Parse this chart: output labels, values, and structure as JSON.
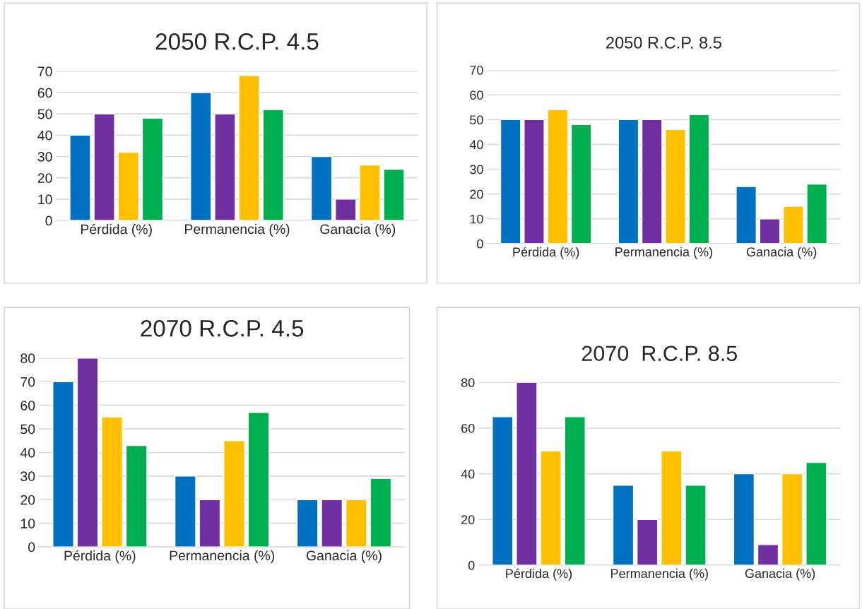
{
  "chart_data": [
    {
      "type": "bar",
      "title": "2050 R.C.P. 4.5",
      "categories": [
        "Pérdida (%)",
        "Permanencia (%)",
        "Ganacia (%)"
      ],
      "ylim": [
        0,
        70
      ],
      "yticks": [
        0,
        10,
        20,
        30,
        40,
        50,
        60,
        70
      ],
      "grid": "y",
      "series": [
        {
          "color": "#0070c0",
          "values": [
            40,
            60,
            30
          ]
        },
        {
          "color": "#7030a0",
          "values": [
            50,
            50,
            10
          ]
        },
        {
          "color": "#ffc000",
          "values": [
            32,
            68,
            26
          ]
        },
        {
          "color": "#00b050",
          "values": [
            48,
            52,
            24
          ]
        }
      ]
    },
    {
      "type": "bar",
      "title": "2050 R.C.P. 8.5",
      "categories": [
        "Pérdida (%)",
        "Permanencia (%)",
        "Ganacia (%)"
      ],
      "ylim": [
        0,
        70
      ],
      "yticks": [
        0,
        10,
        20,
        30,
        40,
        50,
        60,
        70
      ],
      "grid": "y",
      "series": [
        {
          "color": "#0070c0",
          "values": [
            50,
            50,
            23
          ]
        },
        {
          "color": "#7030a0",
          "values": [
            50,
            50,
            10
          ]
        },
        {
          "color": "#ffc000",
          "values": [
            54,
            46,
            15
          ]
        },
        {
          "color": "#00b050",
          "values": [
            48,
            52,
            24
          ]
        }
      ]
    },
    {
      "type": "bar",
      "title": "2070 R.C.P. 4.5",
      "categories": [
        "Pérdida (%)",
        "Permanencia (%)",
        "Ganacia (%)"
      ],
      "ylim": [
        0,
        80
      ],
      "yticks": [
        0,
        10,
        20,
        30,
        40,
        50,
        60,
        70,
        80
      ],
      "grid": "y",
      "series": [
        {
          "color": "#0070c0",
          "values": [
            70,
            30,
            20
          ]
        },
        {
          "color": "#7030a0",
          "values": [
            80,
            20,
            20
          ]
        },
        {
          "color": "#ffc000",
          "values": [
            55,
            45,
            20
          ]
        },
        {
          "color": "#00b050",
          "values": [
            43,
            57,
            29
          ]
        }
      ]
    },
    {
      "type": "bar",
      "title": "2070  R.C.P. 8.5",
      "categories": [
        "Pérdida (%)",
        "Permanencia (%)",
        "Ganacia (%)"
      ],
      "ylim": [
        0,
        80
      ],
      "yticks": [
        0,
        20,
        40,
        60,
        80
      ],
      "grid": "y",
      "series": [
        {
          "color": "#0070c0",
          "values": [
            65,
            35,
            40
          ]
        },
        {
          "color": "#7030a0",
          "values": [
            80,
            20,
            9
          ]
        },
        {
          "color": "#ffc000",
          "values": [
            50,
            50,
            40
          ]
        },
        {
          "color": "#00b050",
          "values": [
            65,
            35,
            45
          ]
        }
      ]
    }
  ]
}
